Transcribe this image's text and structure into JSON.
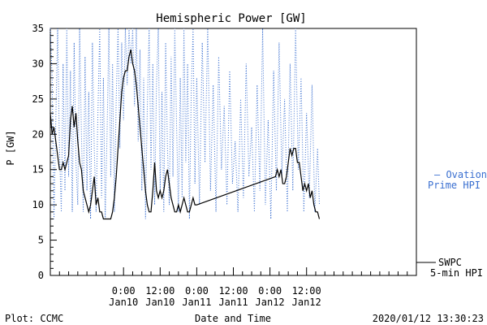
{
  "colors": {
    "swpc": "#000000",
    "ovation": "#3a6fd0",
    "axis": "#000000",
    "background": "#ffffff"
  },
  "chart_data": {
    "type": "line",
    "title": "Hemispheric Power [GW]",
    "xlabel": "Date and Time",
    "ylabel": "P [GW]",
    "ylim": [
      0,
      35
    ],
    "xlim": [
      -16,
      24
    ],
    "yticks": [
      0,
      5,
      10,
      15,
      20,
      25,
      30,
      35
    ],
    "xticks": [
      {
        "x": -8,
        "line1": "0:00",
        "line2": "Jan10"
      },
      {
        "x": -4,
        "line1": "12:00",
        "line2": "Jan10"
      },
      {
        "x": 0,
        "line1": "0:00",
        "line2": "Jan11"
      },
      {
        "x": 4,
        "line1": "12:00",
        "line2": "Jan11"
      },
      {
        "x": 8,
        "line1": "0:00",
        "line2": "Jan12"
      },
      {
        "x": 12,
        "line1": "12:00",
        "line2": "Jan12"
      }
    ],
    "x_units_note": "x in 3-hour steps relative to Jan11 0:00 (tick label times shown)",
    "grid": false,
    "legend_placement": "right",
    "series": [
      {
        "name": "SWPC\n5-min HPI",
        "style": "solid",
        "points": [
          [
            -16,
            23
          ],
          [
            -15.8,
            20
          ],
          [
            -15.6,
            21
          ],
          [
            -15.4,
            19
          ],
          [
            -15.2,
            17
          ],
          [
            -15,
            15
          ],
          [
            -14.8,
            15
          ],
          [
            -14.6,
            16
          ],
          [
            -14.4,
            15
          ],
          [
            -14.2,
            16
          ],
          [
            -14,
            17
          ],
          [
            -13.8,
            22
          ],
          [
            -13.6,
            24
          ],
          [
            -13.4,
            21
          ],
          [
            -13.2,
            23
          ],
          [
            -13,
            19
          ],
          [
            -12.8,
            16
          ],
          [
            -12.6,
            15
          ],
          [
            -12.4,
            12
          ],
          [
            -12.2,
            11
          ],
          [
            -12,
            10
          ],
          [
            -11.8,
            9
          ],
          [
            -11.6,
            10
          ],
          [
            -11.4,
            12
          ],
          [
            -11.2,
            14
          ],
          [
            -11,
            10
          ],
          [
            -10.8,
            11
          ],
          [
            -10.6,
            9
          ],
          [
            -10.4,
            9
          ],
          [
            -10.2,
            8
          ],
          [
            -10,
            8
          ],
          [
            -9.6,
            8
          ],
          [
            -9.4,
            8
          ],
          [
            -9.2,
            9
          ],
          [
            -9,
            11
          ],
          [
            -8.8,
            14
          ],
          [
            -8.6,
            18
          ],
          [
            -8.4,
            22
          ],
          [
            -8.2,
            26
          ],
          [
            -8,
            28
          ],
          [
            -7.8,
            29
          ],
          [
            -7.6,
            29
          ],
          [
            -7.4,
            31
          ],
          [
            -7.2,
            32
          ],
          [
            -7,
            30
          ],
          [
            -6.8,
            29
          ],
          [
            -6.6,
            27
          ],
          [
            -6.4,
            24
          ],
          [
            -6.2,
            21
          ],
          [
            -6,
            18
          ],
          [
            -5.8,
            15
          ],
          [
            -5.6,
            12
          ],
          [
            -5.4,
            10
          ],
          [
            -5.2,
            9
          ],
          [
            -5,
            9
          ],
          [
            -4.8,
            12
          ],
          [
            -4.6,
            16
          ],
          [
            -4.4,
            12
          ],
          [
            -4.2,
            11
          ],
          [
            -4,
            12
          ],
          [
            -3.8,
            11
          ],
          [
            -3.6,
            12
          ],
          [
            -3.4,
            14
          ],
          [
            -3.2,
            15
          ],
          [
            -3,
            13
          ],
          [
            -2.8,
            11
          ],
          [
            -2.6,
            10
          ],
          [
            -2.4,
            9
          ],
          [
            -2.2,
            9
          ],
          [
            -2,
            10
          ],
          [
            -1.8,
            9
          ],
          [
            -1.6,
            10
          ],
          [
            -1.4,
            11
          ],
          [
            -1.2,
            10
          ],
          [
            -1,
            9
          ],
          [
            -0.8,
            9
          ],
          [
            -0.6,
            10
          ],
          [
            -0.4,
            11
          ],
          [
            -0.2,
            10
          ],
          [
            0,
            10
          ],
          [
            8.6,
            14
          ],
          [
            8.8,
            15
          ],
          [
            9,
            14
          ],
          [
            9.2,
            15
          ],
          [
            9.4,
            13
          ],
          [
            9.6,
            13
          ],
          [
            9.8,
            14
          ],
          [
            10,
            16
          ],
          [
            10.2,
            18
          ],
          [
            10.4,
            17
          ],
          [
            10.6,
            18
          ],
          [
            10.8,
            18
          ],
          [
            11,
            16
          ],
          [
            11.2,
            16
          ],
          [
            11.4,
            14
          ],
          [
            11.6,
            12
          ],
          [
            11.8,
            13
          ],
          [
            12,
            12
          ],
          [
            12.2,
            13
          ],
          [
            12.4,
            11
          ],
          [
            12.6,
            12
          ],
          [
            12.8,
            10
          ],
          [
            13,
            9
          ],
          [
            13.2,
            9
          ],
          [
            13.4,
            8
          ]
        ]
      },
      {
        "name": "Ovation\nPrime HPI",
        "style": "dotted",
        "points": [
          [
            -16,
            35
          ],
          [
            -15.8,
            28
          ],
          [
            -15.6,
            8
          ],
          [
            -15.4,
            22
          ],
          [
            -15.2,
            35
          ],
          [
            -15,
            18
          ],
          [
            -14.8,
            9
          ],
          [
            -14.6,
            30
          ],
          [
            -14.4,
            12
          ],
          [
            -14.2,
            35
          ],
          [
            -14,
            14
          ],
          [
            -13.8,
            29
          ],
          [
            -13.6,
            9
          ],
          [
            -13.4,
            33
          ],
          [
            -13.2,
            16
          ],
          [
            -13,
            10
          ],
          [
            -12.8,
            35
          ],
          [
            -12.6,
            20
          ],
          [
            -12.4,
            9
          ],
          [
            -12.2,
            31
          ],
          [
            -12,
            12
          ],
          [
            -11.8,
            26
          ],
          [
            -11.6,
            8
          ],
          [
            -11.4,
            33
          ],
          [
            -11.2,
            18
          ],
          [
            -11,
            9
          ],
          [
            -10.8,
            23
          ],
          [
            -10.6,
            35
          ],
          [
            -10.4,
            11
          ],
          [
            -10.2,
            28
          ],
          [
            -10,
            8
          ],
          [
            -9.8,
            20
          ],
          [
            -9.6,
            35
          ],
          [
            -9.4,
            14
          ],
          [
            -9.2,
            30
          ],
          [
            -9,
            9
          ],
          [
            -8.8,
            25
          ],
          [
            -8.6,
            35
          ],
          [
            -8.4,
            18
          ],
          [
            -8.2,
            33
          ],
          [
            -8,
            22
          ],
          [
            -7.8,
            35
          ],
          [
            -7.6,
            27
          ],
          [
            -7.4,
            35
          ],
          [
            -7.2,
            30
          ],
          [
            -7,
            35
          ],
          [
            -6.8,
            24
          ],
          [
            -6.6,
            35
          ],
          [
            -6.4,
            19
          ],
          [
            -6.2,
            32
          ],
          [
            -6,
            12
          ],
          [
            -5.8,
            28
          ],
          [
            -5.6,
            8
          ],
          [
            -5.4,
            24
          ],
          [
            -5.2,
            35
          ],
          [
            -5,
            15
          ],
          [
            -4.8,
            30
          ],
          [
            -4.6,
            10
          ],
          [
            -4.4,
            27
          ],
          [
            -4.2,
            35
          ],
          [
            -4,
            12
          ],
          [
            -3.8,
            26
          ],
          [
            -3.6,
            9
          ],
          [
            -3.4,
            33
          ],
          [
            -3.2,
            18
          ],
          [
            -3,
            10
          ],
          [
            -2.8,
            31
          ],
          [
            -2.6,
            14
          ],
          [
            -2.4,
            35
          ],
          [
            -2.2,
            21
          ],
          [
            -2,
            9
          ],
          [
            -1.8,
            28
          ],
          [
            -1.6,
            11
          ],
          [
            -1.4,
            35
          ],
          [
            -1.2,
            16
          ],
          [
            -1,
            30
          ],
          [
            -0.8,
            8
          ],
          [
            -0.6,
            26
          ],
          [
            -0.4,
            35
          ],
          [
            -0.2,
            13
          ],
          [
            0,
            28
          ],
          [
            0.3,
            10
          ],
          [
            0.6,
            33
          ],
          [
            0.9,
            16
          ],
          [
            1.2,
            35
          ],
          [
            1.5,
            12
          ],
          [
            1.8,
            27
          ],
          [
            2.1,
            9
          ],
          [
            2.4,
            31
          ],
          [
            2.7,
            15
          ],
          [
            3,
            24
          ],
          [
            3.3,
            10
          ],
          [
            3.6,
            29
          ],
          [
            3.9,
            13
          ],
          [
            4.2,
            19
          ],
          [
            4.5,
            9
          ],
          [
            4.8,
            25
          ],
          [
            5.1,
            11
          ],
          [
            5.4,
            30
          ],
          [
            5.7,
            14
          ],
          [
            6,
            21
          ],
          [
            6.3,
            9
          ],
          [
            6.6,
            27
          ],
          [
            6.9,
            12
          ],
          [
            7.2,
            35
          ],
          [
            7.5,
            10
          ],
          [
            7.8,
            22
          ],
          [
            8.1,
            8
          ],
          [
            8.4,
            29
          ],
          [
            8.7,
            12
          ],
          [
            9,
            33
          ],
          [
            9.3,
            14
          ],
          [
            9.6,
            25
          ],
          [
            9.9,
            9
          ],
          [
            10.2,
            30
          ],
          [
            10.5,
            12
          ],
          [
            10.8,
            35
          ],
          [
            11.1,
            15
          ],
          [
            11.4,
            28
          ],
          [
            11.7,
            9
          ],
          [
            12,
            23
          ],
          [
            12.3,
            11
          ],
          [
            12.6,
            27
          ],
          [
            12.9,
            9
          ],
          [
            13.2,
            18
          ],
          [
            13.4,
            10
          ]
        ]
      }
    ],
    "footer": {
      "left": "Plot: CCMC",
      "right": "2020/01/12 13:30:23"
    },
    "legend": {
      "ovation_line1": "— Ovation",
      "ovation_line2": "Prime HPI",
      "swpc_line1": "SWPC",
      "swpc_line2": "5-min HPI"
    }
  }
}
